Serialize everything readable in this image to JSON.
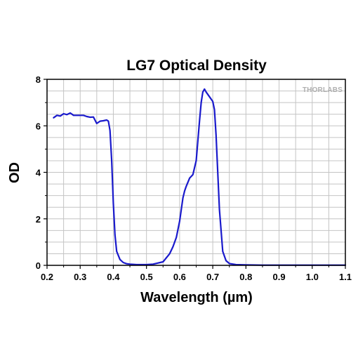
{
  "chart_data": {
    "type": "line",
    "title": "LG7 Optical Density",
    "xlabel": "Wavelength (µm)",
    "ylabel": "OD",
    "xlim": [
      0.2,
      1.1
    ],
    "ylim": [
      0,
      8
    ],
    "x_ticks": [
      "0.2",
      "0.3",
      "0.4",
      "0.5",
      "0.6",
      "0.7",
      "0.8",
      "0.9",
      "1.0",
      "1.1"
    ],
    "y_ticks": [
      "0",
      "2",
      "4",
      "6",
      "8"
    ],
    "grid": true,
    "watermark": "THORLABS",
    "series": [
      {
        "color": "#1a1acc",
        "x": [
          0.22,
          0.23,
          0.24,
          0.25,
          0.26,
          0.27,
          0.28,
          0.29,
          0.3,
          0.31,
          0.32,
          0.33,
          0.34,
          0.35,
          0.36,
          0.37,
          0.38,
          0.385,
          0.39,
          0.395,
          0.4,
          0.405,
          0.41,
          0.42,
          0.43,
          0.44,
          0.45,
          0.47,
          0.5,
          0.52,
          0.55,
          0.57,
          0.58,
          0.59,
          0.6,
          0.61,
          0.615,
          0.62,
          0.63,
          0.64,
          0.65,
          0.66,
          0.665,
          0.67,
          0.675,
          0.68,
          0.69,
          0.7,
          0.705,
          0.71,
          0.715,
          0.72,
          0.73,
          0.74,
          0.75,
          0.77,
          0.8,
          0.85,
          0.9,
          1.0,
          1.1
        ],
        "y": [
          6.35,
          6.45,
          6.42,
          6.52,
          6.48,
          6.55,
          6.45,
          6.45,
          6.45,
          6.45,
          6.4,
          6.37,
          6.38,
          6.1,
          6.2,
          6.22,
          6.25,
          6.2,
          5.8,
          4.5,
          2.7,
          1.3,
          0.6,
          0.25,
          0.12,
          0.07,
          0.05,
          0.03,
          0.03,
          0.05,
          0.15,
          0.5,
          0.8,
          1.2,
          1.9,
          2.9,
          3.2,
          3.4,
          3.75,
          3.9,
          4.5,
          6.2,
          7.0,
          7.45,
          7.58,
          7.45,
          7.25,
          7.05,
          6.7,
          5.6,
          4.0,
          2.4,
          0.6,
          0.2,
          0.08,
          0.03,
          0.02,
          0.01,
          0.01,
          0.01,
          0.01
        ]
      }
    ]
  }
}
